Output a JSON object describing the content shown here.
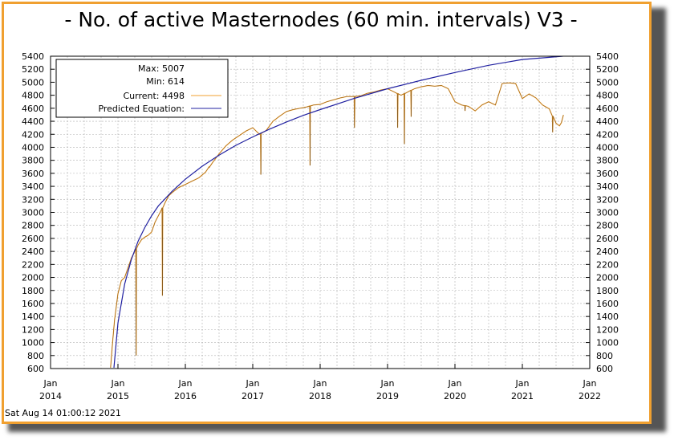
{
  "title": "- No. of active Masternodes (60 min. intervals) V3 -",
  "timestamp": "Sat Aug 14 01:00:12 2021",
  "colors": {
    "frame": "#f0a030",
    "current": "#f0a030",
    "predicted": "#2020a0"
  },
  "chart_data": {
    "type": "line",
    "title": "- No. of active Masternodes (60 min. intervals) V3 -",
    "xlim": [
      2014.0,
      2022.0
    ],
    "ylim": [
      600,
      5400
    ],
    "yticks": [
      600,
      800,
      1000,
      1200,
      1400,
      1600,
      1800,
      2000,
      2200,
      2400,
      2600,
      2800,
      3000,
      3200,
      3400,
      3600,
      3800,
      4000,
      4200,
      4400,
      4600,
      4800,
      5000,
      5200,
      5400
    ],
    "xticks": [
      {
        "x": 2014.0,
        "month": "Jan",
        "year": "2014"
      },
      {
        "x": 2015.0,
        "month": "Jan",
        "year": "2015"
      },
      {
        "x": 2016.0,
        "month": "Jan",
        "year": "2016"
      },
      {
        "x": 2017.0,
        "month": "Jan",
        "year": "2017"
      },
      {
        "x": 2018.0,
        "month": "Jan",
        "year": "2018"
      },
      {
        "x": 2019.0,
        "month": "Jan",
        "year": "2019"
      },
      {
        "x": 2020.0,
        "month": "Jan",
        "year": "2020"
      },
      {
        "x": 2021.0,
        "month": "Jan",
        "year": "2021"
      },
      {
        "x": 2022.0,
        "month": "Jan",
        "year": "2022"
      }
    ],
    "grid": true,
    "legend_position": "top-left",
    "legend": {
      "max": "Max: 5007",
      "min": "Min: 614",
      "current": "Current: 4498",
      "predicted": "Predicted Equation:"
    },
    "series": [
      {
        "name": "Current: 4498",
        "color": "#f0a030",
        "points": [
          [
            2014.89,
            614
          ],
          [
            2014.92,
            1000
          ],
          [
            2014.95,
            1350
          ],
          [
            2015.0,
            1750
          ],
          [
            2015.05,
            1950
          ],
          [
            2015.1,
            2000
          ],
          [
            2015.15,
            2150
          ],
          [
            2015.2,
            2300
          ],
          [
            2015.25,
            2400
          ],
          [
            2015.3,
            2500
          ],
          [
            2015.35,
            2580
          ],
          [
            2015.4,
            2620
          ],
          [
            2015.45,
            2650
          ],
          [
            2015.5,
            2700
          ],
          [
            2015.55,
            2850
          ],
          [
            2015.6,
            2950
          ],
          [
            2015.65,
            3050
          ],
          [
            2015.7,
            3150
          ],
          [
            2015.75,
            3250
          ],
          [
            2015.8,
            3300
          ],
          [
            2015.9,
            3380
          ],
          [
            2016.0,
            3430
          ],
          [
            2016.1,
            3480
          ],
          [
            2016.2,
            3530
          ],
          [
            2016.3,
            3620
          ],
          [
            2016.4,
            3760
          ],
          [
            2016.5,
            3900
          ],
          [
            2016.6,
            4020
          ],
          [
            2016.7,
            4110
          ],
          [
            2016.8,
            4180
          ],
          [
            2016.9,
            4250
          ],
          [
            2017.0,
            4300
          ],
          [
            2017.1,
            4200
          ],
          [
            2017.2,
            4260
          ],
          [
            2017.3,
            4400
          ],
          [
            2017.4,
            4480
          ],
          [
            2017.5,
            4550
          ],
          [
            2017.6,
            4580
          ],
          [
            2017.7,
            4600
          ],
          [
            2017.8,
            4620
          ],
          [
            2017.9,
            4650
          ],
          [
            2018.0,
            4660
          ],
          [
            2018.1,
            4700
          ],
          [
            2018.2,
            4730
          ],
          [
            2018.3,
            4760
          ],
          [
            2018.4,
            4780
          ],
          [
            2018.5,
            4780
          ],
          [
            2018.6,
            4790
          ],
          [
            2018.7,
            4830
          ],
          [
            2018.8,
            4850
          ],
          [
            2018.9,
            4880
          ],
          [
            2019.0,
            4900
          ],
          [
            2019.1,
            4850
          ],
          [
            2019.2,
            4800
          ],
          [
            2019.3,
            4850
          ],
          [
            2019.4,
            4900
          ],
          [
            2019.5,
            4930
          ],
          [
            2019.6,
            4950
          ],
          [
            2019.7,
            4940
          ],
          [
            2019.8,
            4950
          ],
          [
            2019.9,
            4900
          ],
          [
            2020.0,
            4700
          ],
          [
            2020.1,
            4650
          ],
          [
            2020.2,
            4630
          ],
          [
            2020.3,
            4560
          ],
          [
            2020.4,
            4650
          ],
          [
            2020.5,
            4700
          ],
          [
            2020.6,
            4650
          ],
          [
            2020.7,
            4980
          ],
          [
            2020.8,
            4990
          ],
          [
            2020.9,
            4980
          ],
          [
            2021.0,
            4750
          ],
          [
            2021.1,
            4820
          ],
          [
            2021.2,
            4760
          ],
          [
            2021.3,
            4650
          ],
          [
            2021.4,
            4590
          ],
          [
            2021.5,
            4370
          ],
          [
            2021.55,
            4330
          ],
          [
            2021.58,
            4380
          ],
          [
            2021.61,
            4498
          ]
        ],
        "dips": [
          [
            2015.27,
            800
          ],
          [
            2015.66,
            1720
          ],
          [
            2016.35,
            3700
          ],
          [
            2017.12,
            3580
          ],
          [
            2017.85,
            3720
          ],
          [
            2018.51,
            4300
          ],
          [
            2019.15,
            4300
          ],
          [
            2019.25,
            4050
          ],
          [
            2019.35,
            4470
          ],
          [
            2020.15,
            4560
          ],
          [
            2021.45,
            4230
          ]
        ]
      },
      {
        "name": "Predicted Equation:",
        "color": "#2020a0",
        "points": [
          [
            2014.94,
            614
          ],
          [
            2015.0,
            1300
          ],
          [
            2015.1,
            1900
          ],
          [
            2015.2,
            2280
          ],
          [
            2015.3,
            2560
          ],
          [
            2015.4,
            2770
          ],
          [
            2015.5,
            2950
          ],
          [
            2015.6,
            3100
          ],
          [
            2015.8,
            3320
          ],
          [
            2016.0,
            3510
          ],
          [
            2016.25,
            3710
          ],
          [
            2016.5,
            3880
          ],
          [
            2016.75,
            4030
          ],
          [
            2017.0,
            4160
          ],
          [
            2017.25,
            4280
          ],
          [
            2017.5,
            4390
          ],
          [
            2017.75,
            4490
          ],
          [
            2018.0,
            4580
          ],
          [
            2018.5,
            4750
          ],
          [
            2019.0,
            4900
          ],
          [
            2019.5,
            5030
          ],
          [
            2020.0,
            5150
          ],
          [
            2020.5,
            5260
          ],
          [
            2021.0,
            5350
          ],
          [
            2021.6,
            5400
          ]
        ]
      }
    ]
  }
}
